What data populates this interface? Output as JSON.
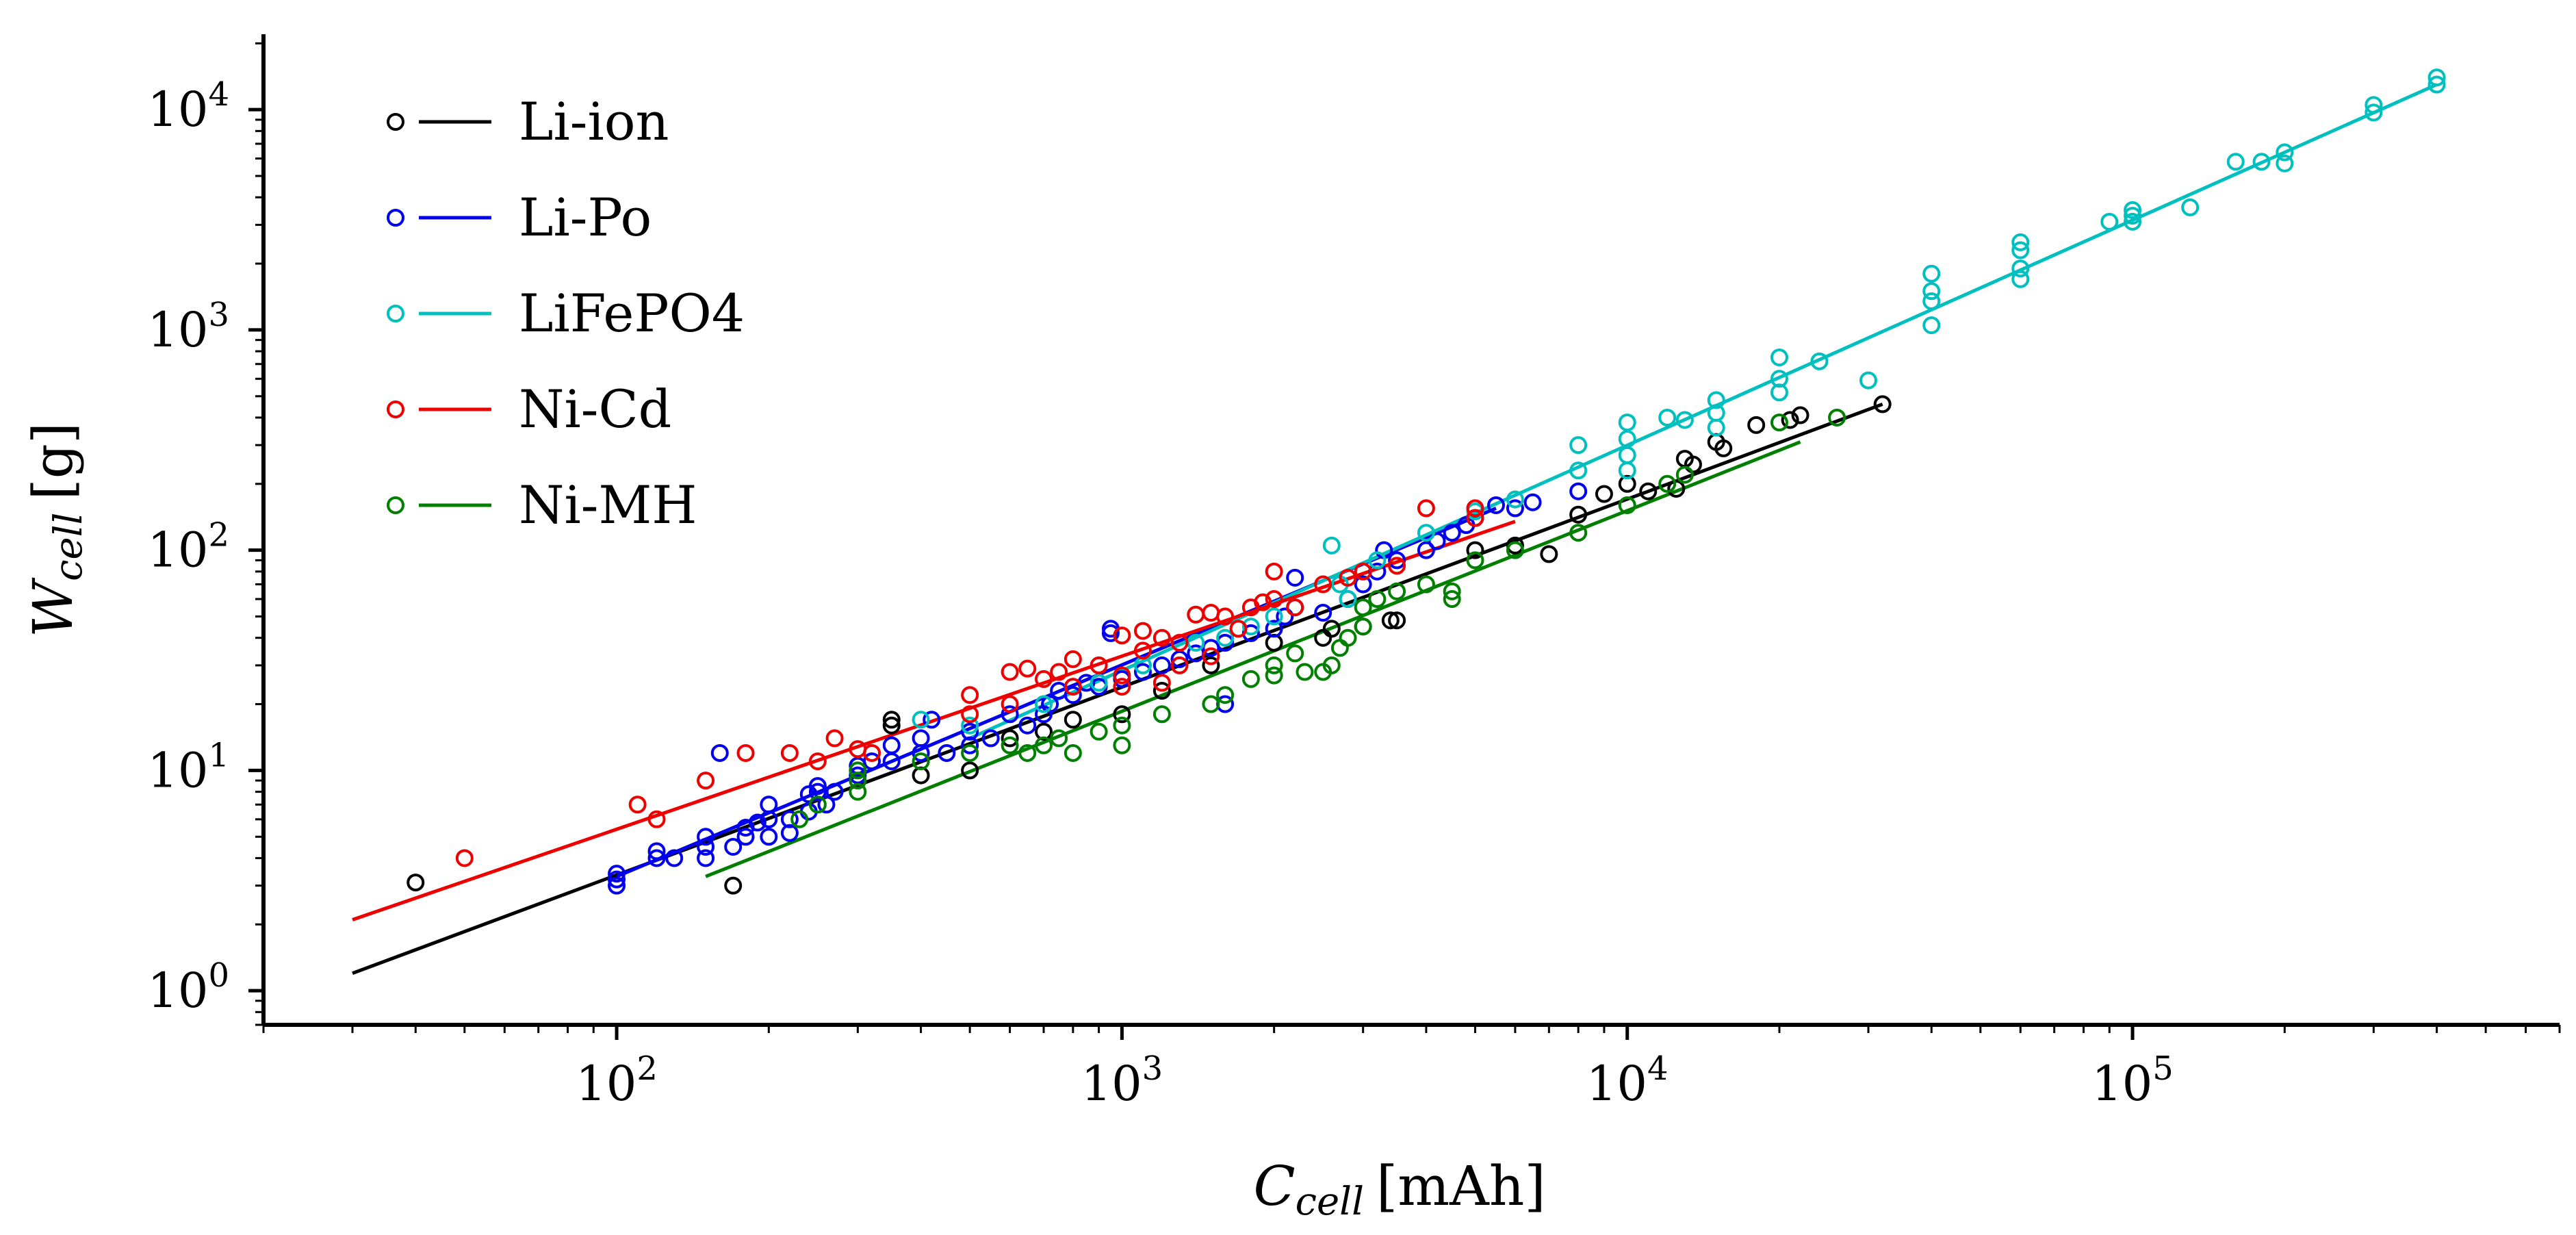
{
  "chart_data": {
    "type": "scatter",
    "x_scale": "log",
    "y_scale": "log",
    "xlabel": {
      "main": "C",
      "sub": "cell",
      "unit": "[mAh]"
    },
    "ylabel": {
      "main": "W",
      "sub": "cell",
      "unit": "[g]"
    },
    "xlim": [
      20,
      700000
    ],
    "ylim": [
      0.7,
      22000
    ],
    "xticks": [
      {
        "value": 100,
        "label": "10",
        "exp": "2"
      },
      {
        "value": 1000,
        "label": "10",
        "exp": "3"
      },
      {
        "value": 10000,
        "label": "10",
        "exp": "4"
      },
      {
        "value": 100000,
        "label": "10",
        "exp": "5"
      }
    ],
    "yticks": [
      {
        "value": 1,
        "label": "10",
        "exp": "0"
      },
      {
        "value": 10,
        "label": "10",
        "exp": "1"
      },
      {
        "value": 100,
        "label": "10",
        "exp": "2"
      },
      {
        "value": 1000,
        "label": "10",
        "exp": "3"
      },
      {
        "value": 10000,
        "label": "10",
        "exp": "4"
      }
    ],
    "legend_position": "top-left",
    "series": [
      {
        "name": "Li-ion",
        "color": "#000000",
        "fit": [
          [
            30,
            1.2
          ],
          [
            32000,
            460
          ]
        ],
        "points": [
          [
            40,
            3.1
          ],
          [
            170,
            3.0
          ],
          [
            350,
            16
          ],
          [
            350,
            17
          ],
          [
            400,
            9.5
          ],
          [
            500,
            10
          ],
          [
            600,
            14
          ],
          [
            700,
            15
          ],
          [
            800,
            17
          ],
          [
            1000,
            18
          ],
          [
            1200,
            23
          ],
          [
            1500,
            30
          ],
          [
            2000,
            38
          ],
          [
            2500,
            40
          ],
          [
            2600,
            44
          ],
          [
            3000,
            45
          ],
          [
            3400,
            48
          ],
          [
            3500,
            48
          ],
          [
            5000,
            100
          ],
          [
            6000,
            105
          ],
          [
            7000,
            96
          ],
          [
            8000,
            145
          ],
          [
            9000,
            180
          ],
          [
            10000,
            200
          ],
          [
            11000,
            185
          ],
          [
            12500,
            190
          ],
          [
            13000,
            260
          ],
          [
            13500,
            245
          ],
          [
            15000,
            310
          ],
          [
            15500,
            290
          ],
          [
            18000,
            370
          ],
          [
            21000,
            390
          ],
          [
            22000,
            410
          ],
          [
            32000,
            460
          ]
        ]
      },
      {
        "name": "Li-Po",
        "color": "#0000ee",
        "fit": [
          [
            100,
            3.3
          ],
          [
            5500,
            155
          ]
        ],
        "points": [
          [
            100,
            3.0
          ],
          [
            100,
            3.2
          ],
          [
            100,
            3.4
          ],
          [
            120,
            4.0
          ],
          [
            120,
            4.3
          ],
          [
            130,
            4.0
          ],
          [
            150,
            4.0
          ],
          [
            150,
            4.5
          ],
          [
            150,
            5.0
          ],
          [
            160,
            12
          ],
          [
            170,
            4.5
          ],
          [
            180,
            5.0
          ],
          [
            180,
            5.5
          ],
          [
            190,
            5.8
          ],
          [
            200,
            5.0
          ],
          [
            200,
            6.0
          ],
          [
            200,
            7.0
          ],
          [
            220,
            5.2
          ],
          [
            220,
            6.0
          ],
          [
            240,
            6.5
          ],
          [
            240,
            7.8
          ],
          [
            250,
            8.5
          ],
          [
            250,
            8.0
          ],
          [
            260,
            7.0
          ],
          [
            270,
            8.0
          ],
          [
            300,
            9.5
          ],
          [
            300,
            10.5
          ],
          [
            320,
            11
          ],
          [
            350,
            11
          ],
          [
            350,
            13
          ],
          [
            400,
            12
          ],
          [
            400,
            14
          ],
          [
            420,
            17
          ],
          [
            450,
            12
          ],
          [
            500,
            13
          ],
          [
            500,
            15
          ],
          [
            550,
            14
          ],
          [
            600,
            18
          ],
          [
            650,
            16
          ],
          [
            700,
            18
          ],
          [
            720,
            20
          ],
          [
            750,
            23
          ],
          [
            800,
            22
          ],
          [
            850,
            25
          ],
          [
            900,
            24
          ],
          [
            950,
            44
          ],
          [
            950,
            42
          ],
          [
            1000,
            26
          ],
          [
            1100,
            28
          ],
          [
            1200,
            30
          ],
          [
            1300,
            32
          ],
          [
            1400,
            34
          ],
          [
            1500,
            36
          ],
          [
            1600,
            38
          ],
          [
            1600,
            20
          ],
          [
            1800,
            42
          ],
          [
            2000,
            44
          ],
          [
            2100,
            50
          ],
          [
            2200,
            55
          ],
          [
            2200,
            75
          ],
          [
            2500,
            52
          ],
          [
            2800,
            60
          ],
          [
            3000,
            70
          ],
          [
            3200,
            80
          ],
          [
            3300,
            100
          ],
          [
            3500,
            90
          ],
          [
            4000,
            100
          ],
          [
            4200,
            110
          ],
          [
            4500,
            120
          ],
          [
            4800,
            130
          ],
          [
            5000,
            140
          ],
          [
            5500,
            160
          ],
          [
            6000,
            155
          ],
          [
            6500,
            165
          ],
          [
            8000,
            185
          ]
        ]
      },
      {
        "name": "LiFePO4",
        "color": "#00bfbf",
        "fit": [
          [
            500,
            14
          ],
          [
            400000,
            13000
          ]
        ],
        "points": [
          [
            400,
            17
          ],
          [
            500,
            16
          ],
          [
            700,
            20
          ],
          [
            900,
            25
          ],
          [
            1100,
            30
          ],
          [
            1400,
            38
          ],
          [
            1600,
            40
          ],
          [
            1800,
            45
          ],
          [
            2000,
            50
          ],
          [
            2200,
            55
          ],
          [
            2600,
            105
          ],
          [
            2700,
            70
          ],
          [
            2800,
            60
          ],
          [
            3000,
            80
          ],
          [
            3200,
            90
          ],
          [
            4000,
            120
          ],
          [
            5000,
            150
          ],
          [
            6000,
            170
          ],
          [
            8000,
            300
          ],
          [
            8000,
            230
          ],
          [
            10000,
            380
          ],
          [
            10000,
            320
          ],
          [
            10000,
            270
          ],
          [
            10000,
            230
          ],
          [
            12000,
            400
          ],
          [
            13000,
            390
          ],
          [
            15000,
            480
          ],
          [
            15000,
            420
          ],
          [
            15000,
            360
          ],
          [
            20000,
            750
          ],
          [
            20000,
            600
          ],
          [
            20000,
            520
          ],
          [
            24000,
            720
          ],
          [
            30000,
            590
          ],
          [
            40000,
            1800
          ],
          [
            40000,
            1500
          ],
          [
            40000,
            1350
          ],
          [
            40000,
            1050
          ],
          [
            60000,
            2500
          ],
          [
            60000,
            2300
          ],
          [
            60000,
            1900
          ],
          [
            60000,
            1700
          ],
          [
            90000,
            3100
          ],
          [
            100000,
            3500
          ],
          [
            100000,
            3300
          ],
          [
            100000,
            3100
          ],
          [
            130000,
            3600
          ],
          [
            160000,
            5800
          ],
          [
            180000,
            5800
          ],
          [
            200000,
            6400
          ],
          [
            200000,
            5700
          ],
          [
            300000,
            10500
          ],
          [
            300000,
            9700
          ],
          [
            400000,
            14000
          ],
          [
            400000,
            13000
          ]
        ]
      },
      {
        "name": "Ni-Cd",
        "color": "#ee0000",
        "fit": [
          [
            30,
            2.1
          ],
          [
            6000,
            135
          ]
        ],
        "points": [
          [
            50,
            4.0
          ],
          [
            110,
            7.0
          ],
          [
            120,
            6.0
          ],
          [
            150,
            9.0
          ],
          [
            180,
            12
          ],
          [
            220,
            12
          ],
          [
            250,
            11
          ],
          [
            270,
            14
          ],
          [
            300,
            12.5
          ],
          [
            320,
            12
          ],
          [
            500,
            18
          ],
          [
            500,
            22
          ],
          [
            600,
            28
          ],
          [
            600,
            20
          ],
          [
            650,
            29
          ],
          [
            700,
            26
          ],
          [
            750,
            28
          ],
          [
            800,
            24
          ],
          [
            800,
            32
          ],
          [
            900,
            30
          ],
          [
            1000,
            41
          ],
          [
            1000,
            27
          ],
          [
            1000,
            24
          ],
          [
            1100,
            43
          ],
          [
            1100,
            35
          ],
          [
            1200,
            25
          ],
          [
            1200,
            40
          ],
          [
            1300,
            38
          ],
          [
            1300,
            30
          ],
          [
            1400,
            51
          ],
          [
            1500,
            52
          ],
          [
            1500,
            33
          ],
          [
            1600,
            50
          ],
          [
            1700,
            44
          ],
          [
            1800,
            55
          ],
          [
            1900,
            58
          ],
          [
            2000,
            80
          ],
          [
            2000,
            60
          ],
          [
            2200,
            55
          ],
          [
            2500,
            70
          ],
          [
            2800,
            75
          ],
          [
            3000,
            80
          ],
          [
            3500,
            85
          ],
          [
            4000,
            155
          ],
          [
            5000,
            155
          ],
          [
            5000,
            140
          ]
        ]
      },
      {
        "name": "Ni-MH",
        "color": "#007f00",
        "fit": [
          [
            150,
            3.3
          ],
          [
            22000,
            310
          ]
        ],
        "points": [
          [
            230,
            6.0
          ],
          [
            250,
            7.0
          ],
          [
            300,
            8.0
          ],
          [
            300,
            9.0
          ],
          [
            300,
            10
          ],
          [
            400,
            11
          ],
          [
            500,
            12
          ],
          [
            600,
            13
          ],
          [
            650,
            12
          ],
          [
            700,
            13
          ],
          [
            750,
            14
          ],
          [
            800,
            12
          ],
          [
            900,
            15
          ],
          [
            1000,
            13
          ],
          [
            1000,
            16
          ],
          [
            1200,
            18
          ],
          [
            1500,
            20
          ],
          [
            1600,
            22
          ],
          [
            1800,
            26
          ],
          [
            2000,
            27
          ],
          [
            2000,
            30
          ],
          [
            2200,
            34
          ],
          [
            2300,
            28
          ],
          [
            2500,
            28
          ],
          [
            2600,
            30
          ],
          [
            2700,
            36
          ],
          [
            2800,
            40
          ],
          [
            3000,
            45
          ],
          [
            3000,
            55
          ],
          [
            3200,
            60
          ],
          [
            3500,
            65
          ],
          [
            4000,
            70
          ],
          [
            4500,
            60
          ],
          [
            4500,
            65
          ],
          [
            5000,
            90
          ],
          [
            6000,
            100
          ],
          [
            8000,
            120
          ],
          [
            10000,
            160
          ],
          [
            12000,
            200
          ],
          [
            13000,
            220
          ],
          [
            20000,
            380
          ],
          [
            26000,
            400
          ]
        ]
      }
    ]
  }
}
